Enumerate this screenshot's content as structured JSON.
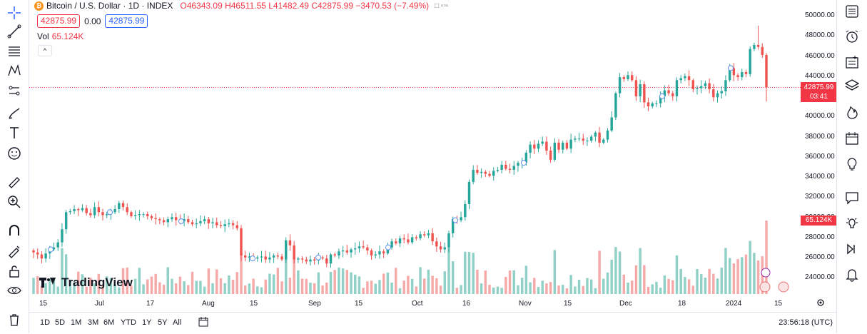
{
  "legend": {
    "symbol": "Bitcoin / U.S. Dollar · 1D · INDEX",
    "ohlc": "O46343.09 H46511.55 L41482.49 C42875.99 −3470.53 (−7.49%)",
    "controls": "□ ▫▫▫"
  },
  "price_boxes": {
    "bid": "42875.99",
    "spread": "0.00",
    "ask": "42875.99"
  },
  "volume": {
    "label": "Vol",
    "value": "65.124K"
  },
  "collapse": "^",
  "yaxis_ticks": [
    "50000.00",
    "48000.00",
    "46000.00",
    "44000.00",
    "42000.00",
    "40000.00",
    "38000.00",
    "36000.00",
    "34000.00",
    "32000.00",
    "30000.00",
    "28000.00",
    "26000.00",
    "24000.00"
  ],
  "price_label": {
    "price": "42875.99",
    "countdown": "03:41"
  },
  "volume_label": "65.124K",
  "xaxis_ticks": [
    "15",
    "Jul",
    "17",
    "Aug",
    "15",
    "Sep",
    "15",
    "Oct",
    "16",
    "Nov",
    "15",
    "Dec",
    "18",
    "2024",
    "15"
  ],
  "timeframes": [
    "1D",
    "5D",
    "1M",
    "3M",
    "6M",
    "YTD",
    "1Y",
    "5Y",
    "All"
  ],
  "clock": "23:56:18 (UTC)",
  "brand": "TradingView",
  "colors": {
    "up": "#26a69a",
    "down": "#ef5350",
    "up_vol": "#8fd0c7",
    "down_vol": "#f5a9a8",
    "last_line": "#f23645"
  },
  "chart_data": {
    "type": "candlestick",
    "title": "Bitcoin / U.S. Dollar · 1D · INDEX",
    "ylim": [
      23000,
      50500
    ],
    "last_price": 42875.99,
    "x_labels": [
      "15",
      "Jul",
      "17",
      "Aug",
      "15",
      "Sep",
      "15",
      "Oct",
      "16",
      "Nov",
      "15",
      "Dec",
      "18",
      "2024",
      "15"
    ],
    "close": [
      26500,
      26300,
      25900,
      26400,
      26800,
      27000,
      27500,
      28800,
      30500,
      30600,
      30800,
      30700,
      30900,
      30400,
      30200,
      31000,
      30500,
      30200,
      30300,
      30500,
      30800,
      31400,
      31000,
      30500,
      30100,
      30200,
      30300,
      30300,
      30100,
      29900,
      29800,
      29700,
      29500,
      29800,
      30000,
      29700,
      29600,
      29800,
      29500,
      29300,
      29400,
      29600,
      29800,
      29400,
      29500,
      29200,
      29100,
      29300,
      29400,
      29200,
      28900,
      26200,
      26000,
      26100,
      25900,
      26000,
      26100,
      25800,
      26000,
      26200,
      26100,
      25800,
      27700,
      27200,
      25800,
      25900,
      25800,
      25600,
      25800,
      25700,
      26000,
      25900,
      25400,
      26300,
      26200,
      26600,
      26700,
      26500,
      26800,
      26900,
      27100,
      27000,
      26700,
      26200,
      26300,
      26600,
      26400,
      27000,
      27600,
      27400,
      27900,
      27800,
      27500,
      28000,
      27900,
      28300,
      28200,
      28400,
      27600,
      27100,
      26800,
      27000,
      28400,
      29800,
      29700,
      30000,
      31300,
      33500,
      34700,
      34400,
      34500,
      34300,
      34100,
      34600,
      34700,
      35200,
      34800,
      34700,
      35100,
      35400,
      35400,
      36400,
      37200,
      36800,
      37300,
      37500,
      36600,
      35700,
      37400,
      36700,
      37400,
      36800,
      37700,
      37800,
      37800,
      37600,
      37600,
      38000,
      38400,
      37400,
      37700,
      38600,
      39900,
      42300,
      43900,
      43700,
      44100,
      43600,
      42000,
      43200,
      41400,
      41000,
      41300,
      41300,
      42000,
      42600,
      42300,
      42000,
      43600,
      43800,
      44000,
      43600,
      42700,
      42800,
      43000,
      43300,
      42700,
      41900,
      42300,
      42500,
      43600,
      44800,
      44100,
      43900,
      44400,
      44200,
      46700,
      47100,
      46900,
      46100,
      42876
    ],
    "volume_scale": "relative"
  }
}
